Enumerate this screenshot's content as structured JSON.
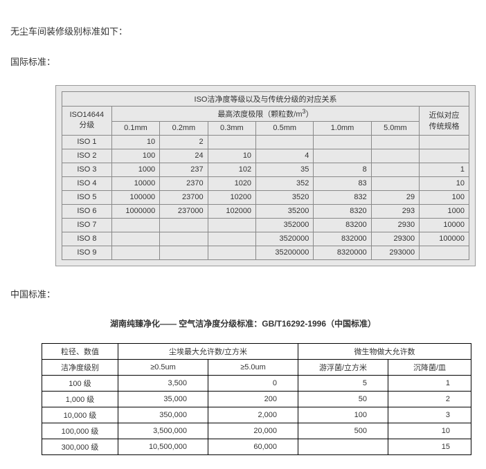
{
  "intro": "无尘车间装修级别标准如下：",
  "section1_label": "国际标准：",
  "table1": {
    "title": "ISO洁净度等级以及与传统分级的对应关系",
    "header_iso": "ISO14644\n分级",
    "header_limit": "最高浓度极限（颗粒数/m",
    "header_limit_sup": "3",
    "header_limit_end": "）",
    "header_trad": "近似对应\n传统规格",
    "cols": [
      "0.1mm",
      "0.2mm",
      "0.3mm",
      "0.5mm",
      "1.0mm",
      "5.0mm"
    ],
    "rows": [
      {
        "iso": "ISO 1",
        "v": [
          "10",
          "2",
          "",
          "",
          "",
          ""
        ],
        "t": ""
      },
      {
        "iso": "ISO 2",
        "v": [
          "100",
          "24",
          "10",
          "4",
          "",
          ""
        ],
        "t": ""
      },
      {
        "iso": "ISO 3",
        "v": [
          "1000",
          "237",
          "102",
          "35",
          "8",
          ""
        ],
        "t": "1"
      },
      {
        "iso": "ISO 4",
        "v": [
          "10000",
          "2370",
          "1020",
          "352",
          "83",
          ""
        ],
        "t": "10"
      },
      {
        "iso": "ISO 5",
        "v": [
          "100000",
          "23700",
          "10200",
          "3520",
          "832",
          "29"
        ],
        "t": "100"
      },
      {
        "iso": "ISO 6",
        "v": [
          "1000000",
          "237000",
          "102000",
          "35200",
          "8320",
          "293"
        ],
        "t": "1000"
      },
      {
        "iso": "ISO 7",
        "v": [
          "",
          "",
          "",
          "352000",
          "83200",
          "2930"
        ],
        "t": "10000"
      },
      {
        "iso": "ISO 8",
        "v": [
          "",
          "",
          "",
          "3520000",
          "832000",
          "29300"
        ],
        "t": "100000"
      },
      {
        "iso": "ISO 9",
        "v": [
          "",
          "",
          "",
          "35200000",
          "8320000",
          "293000"
        ],
        "t": ""
      }
    ]
  },
  "section2_label": "中国标准：",
  "table2": {
    "title": "湖南纯臻净化——  空气洁净度分级标准：GB/T16292-1996（中国标准）",
    "header_particle": "粒径、数值",
    "header_clean": "洁净度级别",
    "header_dust": "尘埃最大允许数/立方米",
    "header_micro": "微生物做大允许数",
    "sub_cols": [
      "≥0.5um",
      "≥5.0um",
      "游浮菌/立方米",
      "沉降菌/皿"
    ],
    "rows": [
      {
        "lbl": "100 级",
        "v": [
          "3,500",
          "0",
          "5",
          "1"
        ]
      },
      {
        "lbl": "1,000 级",
        "v": [
          "35,000",
          "200",
          "50",
          "2"
        ]
      },
      {
        "lbl": "10,000 级",
        "v": [
          "350,000",
          "2,000",
          "100",
          "3"
        ]
      },
      {
        "lbl": "100,000 级",
        "v": [
          "3,500,000",
          "20,000",
          "500",
          "10"
        ]
      },
      {
        "lbl": "300,000 级",
        "v": [
          "10,500,000",
          "60,000",
          "",
          "15"
        ]
      }
    ]
  }
}
